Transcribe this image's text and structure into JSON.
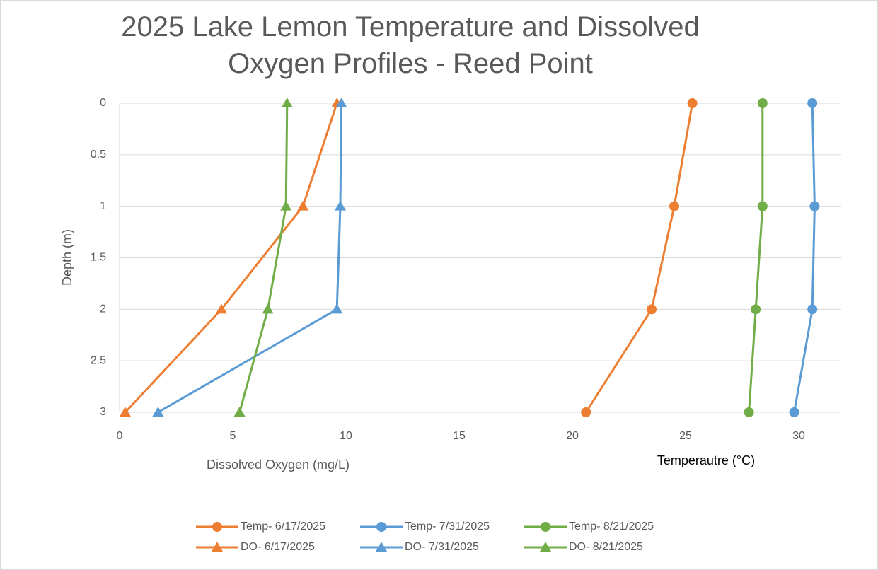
{
  "chart_data": {
    "type": "line",
    "title": "2025 Lake Lemon Temperature and Dissolved Oxygen Profiles - Reed Point",
    "ylabel": "Depth (m)",
    "xlabel": "Dissolved Oxygen (mg/L)",
    "xlabel_2": "Temperautre (°C)",
    "y": [
      0,
      1,
      2,
      3
    ],
    "xlim": [
      0,
      32
    ],
    "xticks": [
      0,
      5,
      10,
      15,
      20,
      25,
      30
    ],
    "ylim": [
      0,
      3
    ],
    "y_inverted": true,
    "yticks": [
      0,
      0.5,
      1,
      1.5,
      2,
      2.5,
      3
    ],
    "grid": true,
    "legend": "bottom",
    "series": [
      {
        "name": "Temp- 6/17/2025",
        "color": "#ed7d31",
        "marker": "circle",
        "x": [
          25.3,
          24.5,
          23.5,
          20.6
        ]
      },
      {
        "name": "Temp- 7/31/2025",
        "color": "#5b9bd5",
        "marker": "circle",
        "x": [
          30.6,
          30.7,
          30.6,
          29.8
        ]
      },
      {
        "name": "Temp- 8/21/2025",
        "color": "#70ad47",
        "marker": "circle",
        "x": [
          28.4,
          28.4,
          28.1,
          27.8
        ]
      },
      {
        "name": "DO- 6/17/2025",
        "color": "#ed7d31",
        "marker": "triangle",
        "x": [
          9.6,
          8.1,
          4.5,
          0.25
        ]
      },
      {
        "name": "DO- 7/31/2025",
        "color": "#5b9bd5",
        "marker": "triangle",
        "x": [
          9.8,
          9.75,
          9.6,
          1.7
        ]
      },
      {
        "name": "DO- 8/21/2025",
        "color": "#70ad47",
        "marker": "triangle",
        "x": [
          7.4,
          7.35,
          6.55,
          5.3
        ]
      }
    ]
  }
}
